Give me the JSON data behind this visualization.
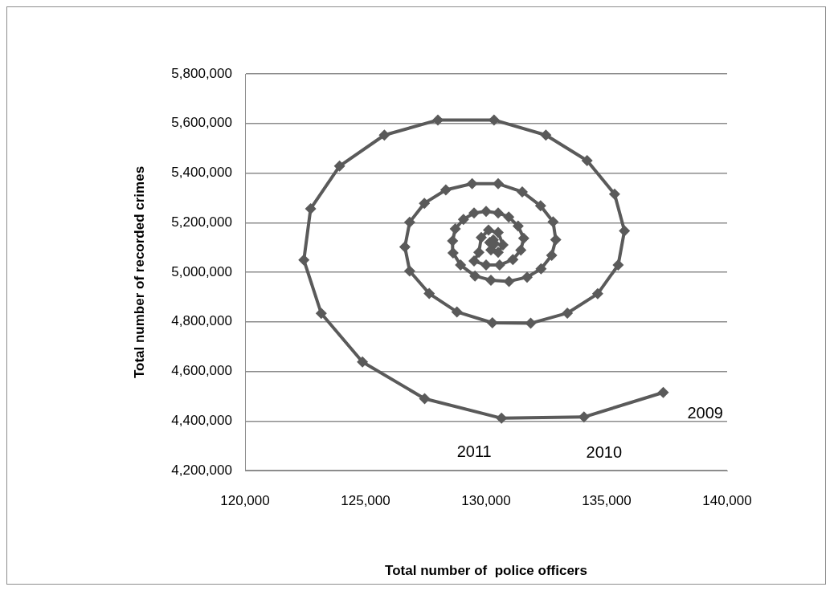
{
  "chart_data": {
    "type": "line",
    "xlabel": "Total number of  police officers",
    "ylabel": "Total number of recorded crimes",
    "x": [
      137350,
      134060,
      130640,
      127450,
      124870,
      123160,
      122440,
      122720,
      123920,
      125780,
      128000,
      130330,
      132480,
      134190,
      135330,
      135740,
      135480,
      134630,
      133370,
      131850,
      130260,
      128790,
      127640,
      126830,
      126630,
      126830,
      127440,
      128330,
      129420,
      130500,
      131500,
      132260,
      132780,
      132890,
      132720,
      132280,
      131700,
      130950,
      130200,
      129540,
      128940,
      128630,
      128610,
      128720,
      129060,
      129500,
      130000,
      130500,
      130940,
      131330,
      131560,
      131440,
      131110,
      130560,
      130000,
      129500,
      129700,
      129800,
      130100,
      130500,
      130700,
      130500,
      130200,
      130150,
      130300,
      130350
    ],
    "series": [
      {
        "color": "#5a5a5a",
        "values": [
          4515000,
          4416000,
          4411000,
          4490000,
          4638000,
          4834000,
          5049000,
          5256000,
          5428000,
          5553000,
          5614000,
          5614000,
          5553000,
          5450000,
          5315000,
          5167000,
          5029000,
          4913000,
          4835000,
          4794000,
          4796000,
          4840000,
          4914000,
          5005000,
          5102000,
          5202000,
          5278000,
          5332000,
          5357000,
          5357000,
          5324000,
          5268000,
          5203000,
          5131000,
          5068000,
          5014000,
          4980000,
          4963000,
          4968000,
          4985000,
          5029000,
          5078000,
          5126000,
          5175000,
          5213000,
          5239000,
          5245000,
          5239000,
          5223000,
          5186000,
          5137000,
          5089000,
          5051000,
          5029000,
          5029000,
          5045000,
          5080000,
          5140000,
          5170000,
          5160000,
          5110000,
          5080000,
          5090000,
          5120000,
          5130000,
          5115000
        ]
      }
    ],
    "xlim": [
      120000,
      140000
    ],
    "xticks": [
      {
        "value": 120000,
        "label": "120,000"
      },
      {
        "value": 125000,
        "label": "125,000"
      },
      {
        "value": 130000,
        "label": "130,000"
      },
      {
        "value": 135000,
        "label": "135,000"
      },
      {
        "value": 140000,
        "label": "140,000"
      }
    ],
    "ylim": [
      4200000,
      5800000
    ],
    "yticks": [
      {
        "value": 4200000,
        "label": "4,200,000"
      },
      {
        "value": 4400000,
        "label": "4,400,000"
      },
      {
        "value": 4600000,
        "label": "4,600,000"
      },
      {
        "value": 4800000,
        "label": "4,800,000"
      },
      {
        "value": 5000000,
        "label": "5,000,000"
      },
      {
        "value": 5200000,
        "label": "5,200,000"
      },
      {
        "value": 5400000,
        "label": "5,400,000"
      },
      {
        "value": 5600000,
        "label": "5,600,000"
      },
      {
        "value": 5800000,
        "label": "5,800,000"
      }
    ],
    "grid": "y",
    "legend": false,
    "marker": "diamond",
    "line_style": "solid",
    "annotations": [
      {
        "text": "2009",
        "x": 137350,
        "y": 4515000
      },
      {
        "text": "2010",
        "x": 134060,
        "y": 4416000
      },
      {
        "text": "2011",
        "x": 130640,
        "y": 4411000
      }
    ]
  }
}
